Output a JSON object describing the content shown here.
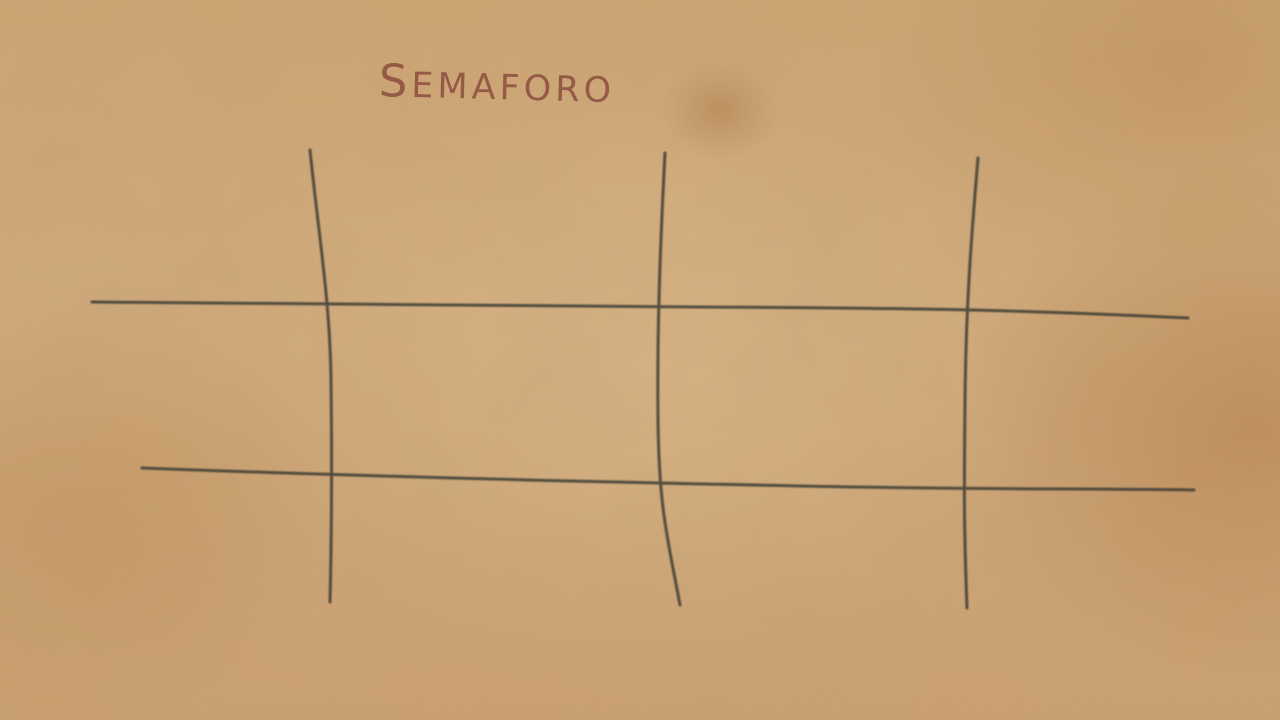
{
  "title": "SEMAFORO",
  "colors": {
    "paper": "#d2ab7c",
    "grid_line": "#3e3c34",
    "title_ink": "#8a4a3c"
  },
  "board": {
    "rows": 2,
    "columns": 3,
    "cells": [
      {
        "row": 1,
        "column": 1,
        "value": ""
      },
      {
        "row": 1,
        "column": 2,
        "value": ""
      },
      {
        "row": 1,
        "column": 3,
        "value": ""
      },
      {
        "row": 2,
        "column": 1,
        "value": ""
      },
      {
        "row": 2,
        "column": 2,
        "value": ""
      },
      {
        "row": 2,
        "column": 3,
        "value": ""
      }
    ]
  }
}
